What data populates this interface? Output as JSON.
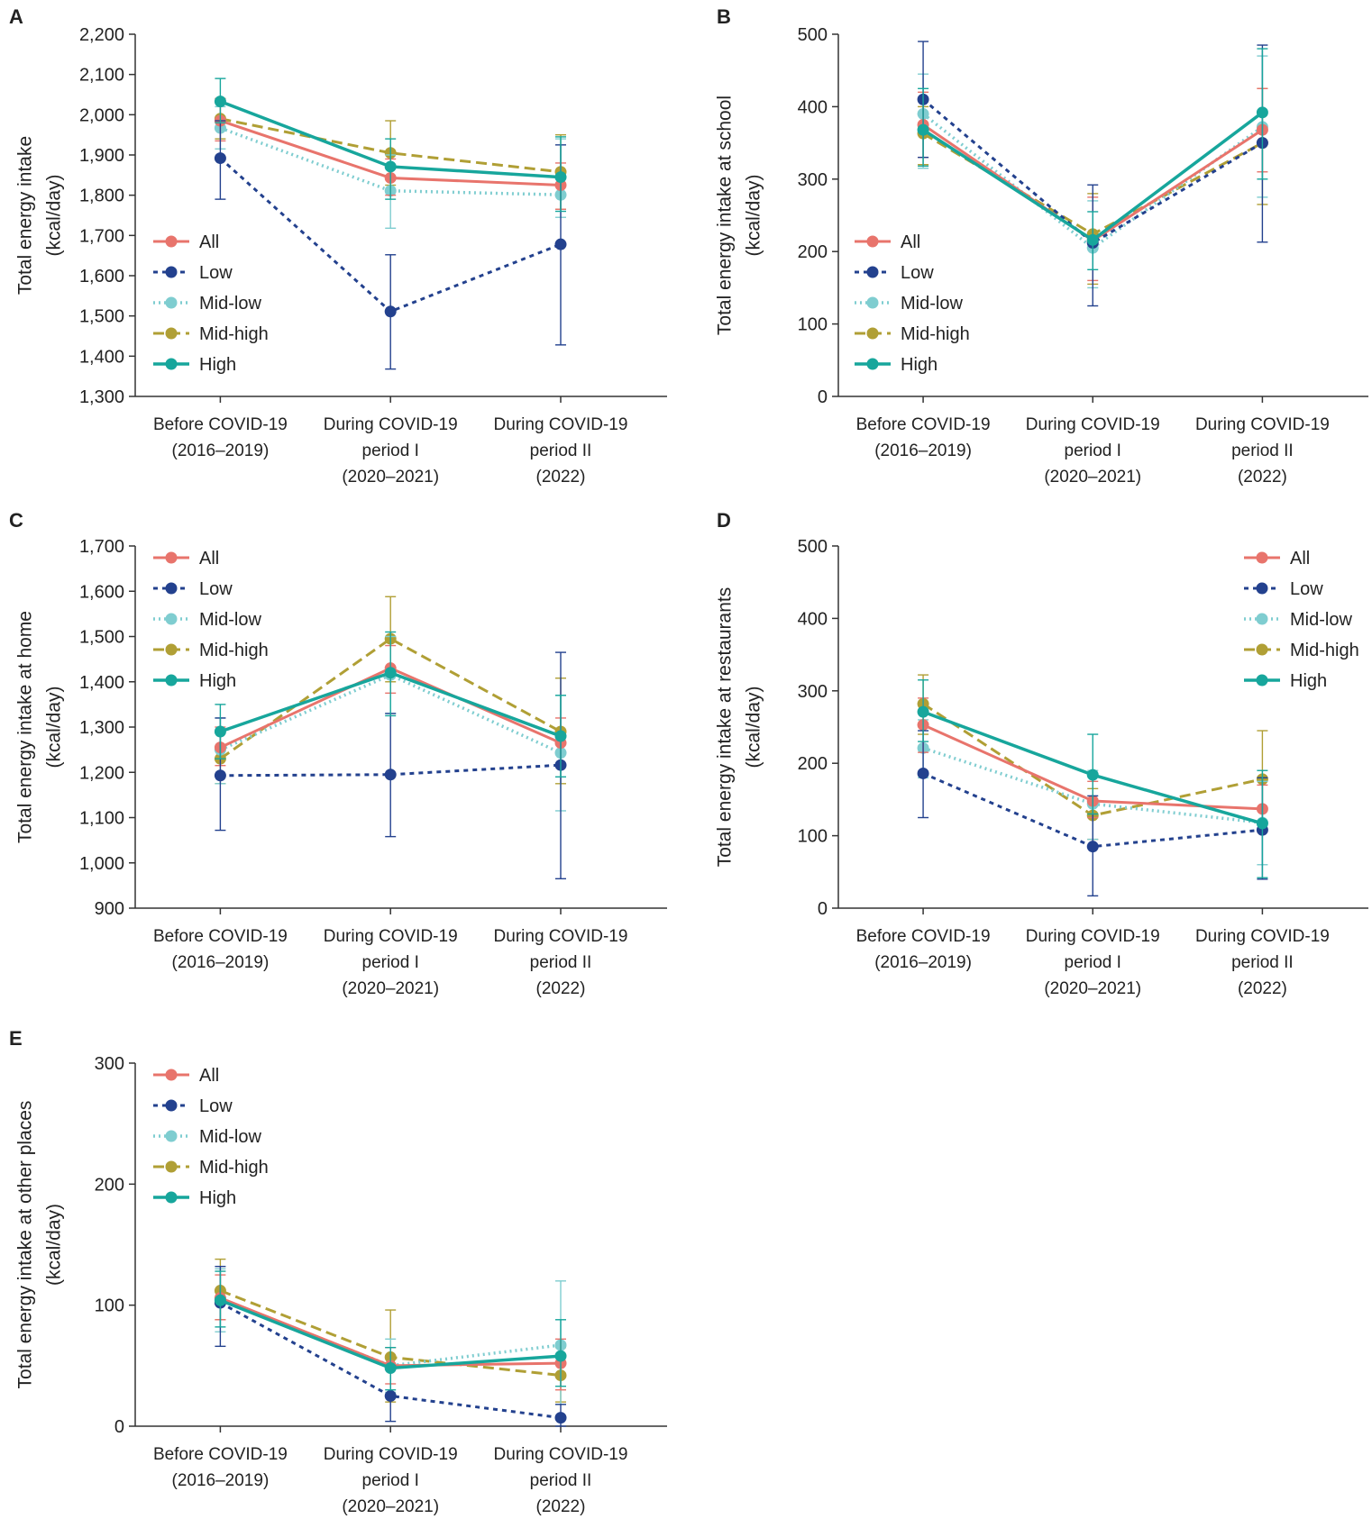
{
  "categories": [
    [
      "Before COVID-19",
      "(2016–2019)"
    ],
    [
      "During COVID-19",
      "period I",
      "(2020–2021)"
    ],
    [
      "During COVID-19",
      "period II",
      "(2022)"
    ]
  ],
  "series_styles": {
    "All": {
      "color": "#E8746C",
      "dash": "none",
      "width": 3
    },
    "Low": {
      "color": "#23418E",
      "dash": "5,5",
      "width": 3
    },
    "Mid-low": {
      "color": "#7FCDD0",
      "dash": "2,4",
      "width": 3.5
    },
    "Mid-high": {
      "color": "#B09F35",
      "dash": "12,6",
      "width": 3
    },
    "High": {
      "color": "#17A69C",
      "dash": "none",
      "width": 3.5
    }
  },
  "chart_data": [
    {
      "type": "line",
      "panel": "A",
      "ylabel": [
        "Total energy intake",
        "(kcal/day)"
      ],
      "ylim": [
        1300,
        2200
      ],
      "yticks": [
        1300,
        1400,
        1500,
        1600,
        1700,
        1800,
        1900,
        2000,
        2100,
        2200
      ],
      "ytick_labels": [
        "1,300",
        "1,400",
        "1,500",
        "1,600",
        "1,700",
        "1,800",
        "1,900",
        "2,000",
        "2,100",
        "2,200"
      ],
      "legend_position": "left",
      "series": [
        {
          "name": "All",
          "values": [
            1985,
            1843,
            1825
          ],
          "err_low": [
            1935,
            1800,
            1765
          ],
          "err_high": [
            2040,
            1890,
            1880
          ]
        },
        {
          "name": "Low",
          "values": [
            1892,
            1511,
            1678
          ],
          "err_low": [
            1790,
            1368,
            1428
          ],
          "err_high": [
            1985,
            1652,
            1925
          ]
        },
        {
          "name": "Mid-low",
          "values": [
            1967,
            1811,
            1801
          ],
          "err_low": [
            1915,
            1718,
            1745
          ],
          "err_high": [
            2020,
            1900,
            1940
          ]
        },
        {
          "name": "Mid-high",
          "values": [
            1990,
            1905,
            1858
          ],
          "err_low": [
            1940,
            1825,
            1765
          ],
          "err_high": [
            2040,
            1985,
            1950
          ]
        },
        {
          "name": "High",
          "values": [
            2033,
            1871,
            1845
          ],
          "err_low": [
            1980,
            1790,
            1760
          ],
          "err_high": [
            2090,
            1940,
            1945
          ]
        }
      ]
    },
    {
      "type": "line",
      "panel": "B",
      "ylabel": [
        "Total energy intake at school",
        "(kcal/day)"
      ],
      "ylim": [
        0,
        500
      ],
      "yticks": [
        0,
        100,
        200,
        300,
        400,
        500
      ],
      "ytick_labels": [
        "0",
        "100",
        "200",
        "300",
        "400",
        "500"
      ],
      "legend_position": "left",
      "series": [
        {
          "name": "All",
          "values": [
            375,
            215,
            368
          ],
          "err_low": [
            330,
            160,
            310
          ],
          "err_high": [
            420,
            275,
            425
          ]
        },
        {
          "name": "Low",
          "values": [
            410,
            212,
            350
          ],
          "err_low": [
            330,
            125,
            213
          ],
          "err_high": [
            490,
            292,
            485
          ]
        },
        {
          "name": "Mid-low",
          "values": [
            390,
            205,
            372
          ],
          "err_low": [
            315,
            150,
            275
          ],
          "err_high": [
            445,
            270,
            470
          ]
        },
        {
          "name": "Mid-high",
          "values": [
            363,
            224,
            350
          ],
          "err_low": [
            320,
            155,
            265
          ],
          "err_high": [
            400,
            280,
            425
          ]
        },
        {
          "name": "High",
          "values": [
            368,
            216,
            392
          ],
          "err_low": [
            318,
            175,
            300
          ],
          "err_high": [
            425,
            255,
            480
          ]
        }
      ]
    },
    {
      "type": "line",
      "panel": "C",
      "ylabel": [
        "Total energy intake at home",
        "(kcal/day)"
      ],
      "ylim": [
        900,
        1700
      ],
      "yticks": [
        900,
        1000,
        1100,
        1200,
        1300,
        1400,
        1500,
        1600,
        1700
      ],
      "ytick_labels": [
        "900",
        "1,000",
        "1,100",
        "1,200",
        "1,300",
        "1,400",
        "1,500",
        "1,600",
        "1,700"
      ],
      "legend_position": "top-left",
      "series": [
        {
          "name": "All",
          "values": [
            1255,
            1430,
            1265
          ],
          "err_low": [
            1215,
            1375,
            1215
          ],
          "err_high": [
            1300,
            1480,
            1320
          ]
        },
        {
          "name": "Low",
          "values": [
            1193,
            1195,
            1216
          ],
          "err_low": [
            1072,
            1058,
            965
          ],
          "err_high": [
            1320,
            1330,
            1465
          ]
        },
        {
          "name": "Mid-low",
          "values": [
            1250,
            1415,
            1243
          ],
          "err_low": [
            1175,
            1330,
            1115
          ],
          "err_high": [
            1320,
            1500,
            1370
          ]
        },
        {
          "name": "Mid-high",
          "values": [
            1230,
            1495,
            1290
          ],
          "err_low": [
            1175,
            1400,
            1175
          ],
          "err_high": [
            1290,
            1588,
            1408
          ]
        },
        {
          "name": "High",
          "values": [
            1290,
            1420,
            1280
          ],
          "err_low": [
            1230,
            1325,
            1190
          ],
          "err_high": [
            1350,
            1510,
            1370
          ]
        }
      ]
    },
    {
      "type": "line",
      "panel": "D",
      "ylabel": [
        "Total energy intake at restaurants",
        "(kcal/day)"
      ],
      "ylim": [
        0,
        500
      ],
      "yticks": [
        0,
        100,
        200,
        300,
        400,
        500
      ],
      "ytick_labels": [
        "0",
        "100",
        "200",
        "300",
        "400",
        "500"
      ],
      "legend_position": "top-right",
      "series": [
        {
          "name": "All",
          "values": [
            253,
            148,
            137
          ],
          "err_low": [
            215,
            125,
            105
          ],
          "err_high": [
            290,
            175,
            170
          ]
        },
        {
          "name": "Low",
          "values": [
            186,
            85,
            108
          ],
          "err_low": [
            125,
            17,
            40
          ],
          "err_high": [
            245,
            155,
            180
          ]
        },
        {
          "name": "Mid-low",
          "values": [
            221,
            144,
            118
          ],
          "err_low": [
            180,
            95,
            60
          ],
          "err_high": [
            260,
            190,
            175
          ]
        },
        {
          "name": "Mid-high",
          "values": [
            282,
            128,
            178
          ],
          "err_low": [
            240,
            95,
            110
          ],
          "err_high": [
            322,
            165,
            245
          ]
        },
        {
          "name": "High",
          "values": [
            271,
            184,
            117
          ],
          "err_low": [
            230,
            130,
            42
          ],
          "err_high": [
            315,
            240,
            190
          ]
        }
      ]
    },
    {
      "type": "line",
      "panel": "E",
      "ylabel": [
        "Total energy intake at other places",
        "(kcal/day)"
      ],
      "ylim": [
        0,
        300
      ],
      "yticks": [
        0,
        100,
        200,
        300
      ],
      "ytick_labels": [
        "0",
        "100",
        "200",
        "300"
      ],
      "legend_position": "top-left",
      "series": [
        {
          "name": "All",
          "values": [
            106,
            50,
            52
          ],
          "err_low": [
            88,
            35,
            30
          ],
          "err_high": [
            125,
            65,
            72
          ]
        },
        {
          "name": "Low",
          "values": [
            102,
            25,
            7
          ],
          "err_low": [
            66,
            4,
            0
          ],
          "err_high": [
            132,
            50,
            18
          ]
        },
        {
          "name": "Mid-low",
          "values": [
            105,
            50,
            67
          ],
          "err_low": [
            78,
            28,
            18
          ],
          "err_high": [
            130,
            72,
            120
          ]
        },
        {
          "name": "Mid-high",
          "values": [
            112,
            57,
            42
          ],
          "err_low": [
            88,
            20,
            20
          ],
          "err_high": [
            138,
            96,
            65
          ]
        },
        {
          "name": "High",
          "values": [
            104,
            48,
            58
          ],
          "err_low": [
            82,
            30,
            33
          ],
          "err_high": [
            128,
            65,
            88
          ]
        }
      ]
    }
  ]
}
